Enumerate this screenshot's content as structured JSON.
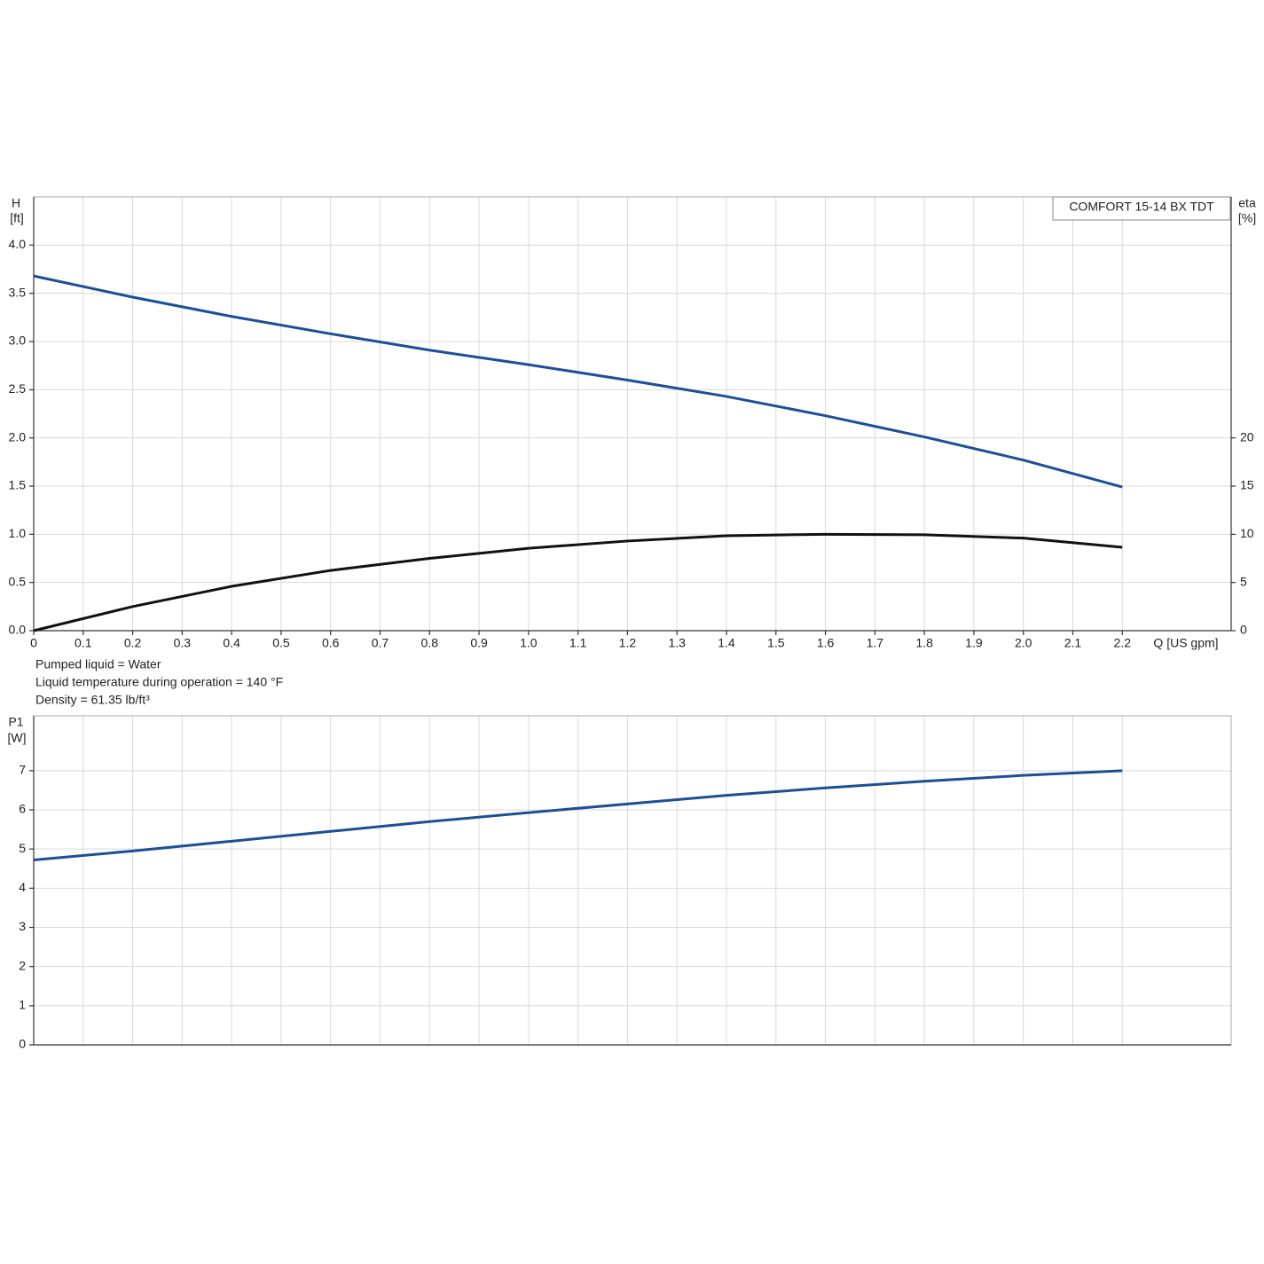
{
  "chart_data": [
    {
      "type": "line",
      "product": "COMFORT 15-14 BX TDT",
      "ylabel": "H",
      "yunit": "[ft]",
      "y2label": "eta",
      "y2unit": "[%]",
      "xlabel": "Q [US gpm]",
      "annotations": [
        "Pumped liquid = Water",
        "Liquid temperature during operation = 140 °F",
        "Density = 61.35 lb/ft³"
      ],
      "x": [
        0,
        0.2,
        0.4,
        0.6,
        0.8,
        1.0,
        1.2,
        1.4,
        1.6,
        1.8,
        2.0,
        2.2
      ],
      "series": [
        {
          "color": "#1c4f96",
          "axis": "y",
          "values": [
            3.68,
            3.46,
            3.26,
            3.08,
            2.91,
            2.76,
            2.6,
            2.43,
            2.23,
            2.01,
            1.77,
            1.49
          ]
        },
        {
          "color": "#111111",
          "axis": "y2",
          "values": [
            0,
            2.5,
            4.6,
            6.25,
            7.5,
            8.55,
            9.3,
            9.85,
            10.0,
            9.95,
            9.6,
            8.65
          ]
        }
      ],
      "xlim": [
        0,
        2.42
      ],
      "xticks": [
        {
          "value": 0,
          "label": "0"
        },
        0.1,
        0.2,
        0.3,
        0.4,
        0.5,
        0.6,
        0.7,
        0.8,
        0.9,
        {
          "value": 1.0,
          "label": "1.0"
        },
        1.1,
        1.2,
        1.3,
        1.4,
        1.5,
        1.6,
        1.7,
        1.8,
        1.9,
        {
          "value": 2.0,
          "label": "2.0"
        },
        2.1,
        2.2
      ],
      "ylim": [
        0,
        4.5
      ],
      "yticks": [
        {
          "value": 0,
          "label": "0.0"
        },
        0.5,
        {
          "value": 1,
          "label": "1.0"
        },
        1.5,
        {
          "value": 2,
          "label": "2.0"
        },
        2.5,
        {
          "value": 3,
          "label": "3.0"
        },
        3.5,
        {
          "value": 4,
          "label": "4.0"
        }
      ],
      "y2lim": [
        0,
        45
      ],
      "y2ticks": [
        0,
        5,
        10,
        15,
        20
      ],
      "grid": true
    },
    {
      "type": "line",
      "ylabel": "P1",
      "yunit": "[W]",
      "x": [
        0,
        0.2,
        0.4,
        0.6,
        0.8,
        1.0,
        1.2,
        1.4,
        1.6,
        1.8,
        2.0,
        2.2
      ],
      "series": [
        {
          "color": "#1c4f96",
          "axis": "y",
          "values": [
            4.72,
            4.95,
            5.2,
            5.45,
            5.7,
            5.93,
            6.15,
            6.37,
            6.56,
            6.73,
            6.88,
            7.0
          ]
        }
      ],
      "xlim": [
        0,
        2.42
      ],
      "ylim": [
        0,
        8.4
      ],
      "yticks": [
        0,
        1,
        2,
        3,
        4,
        5,
        6,
        7
      ],
      "grid": true
    }
  ]
}
